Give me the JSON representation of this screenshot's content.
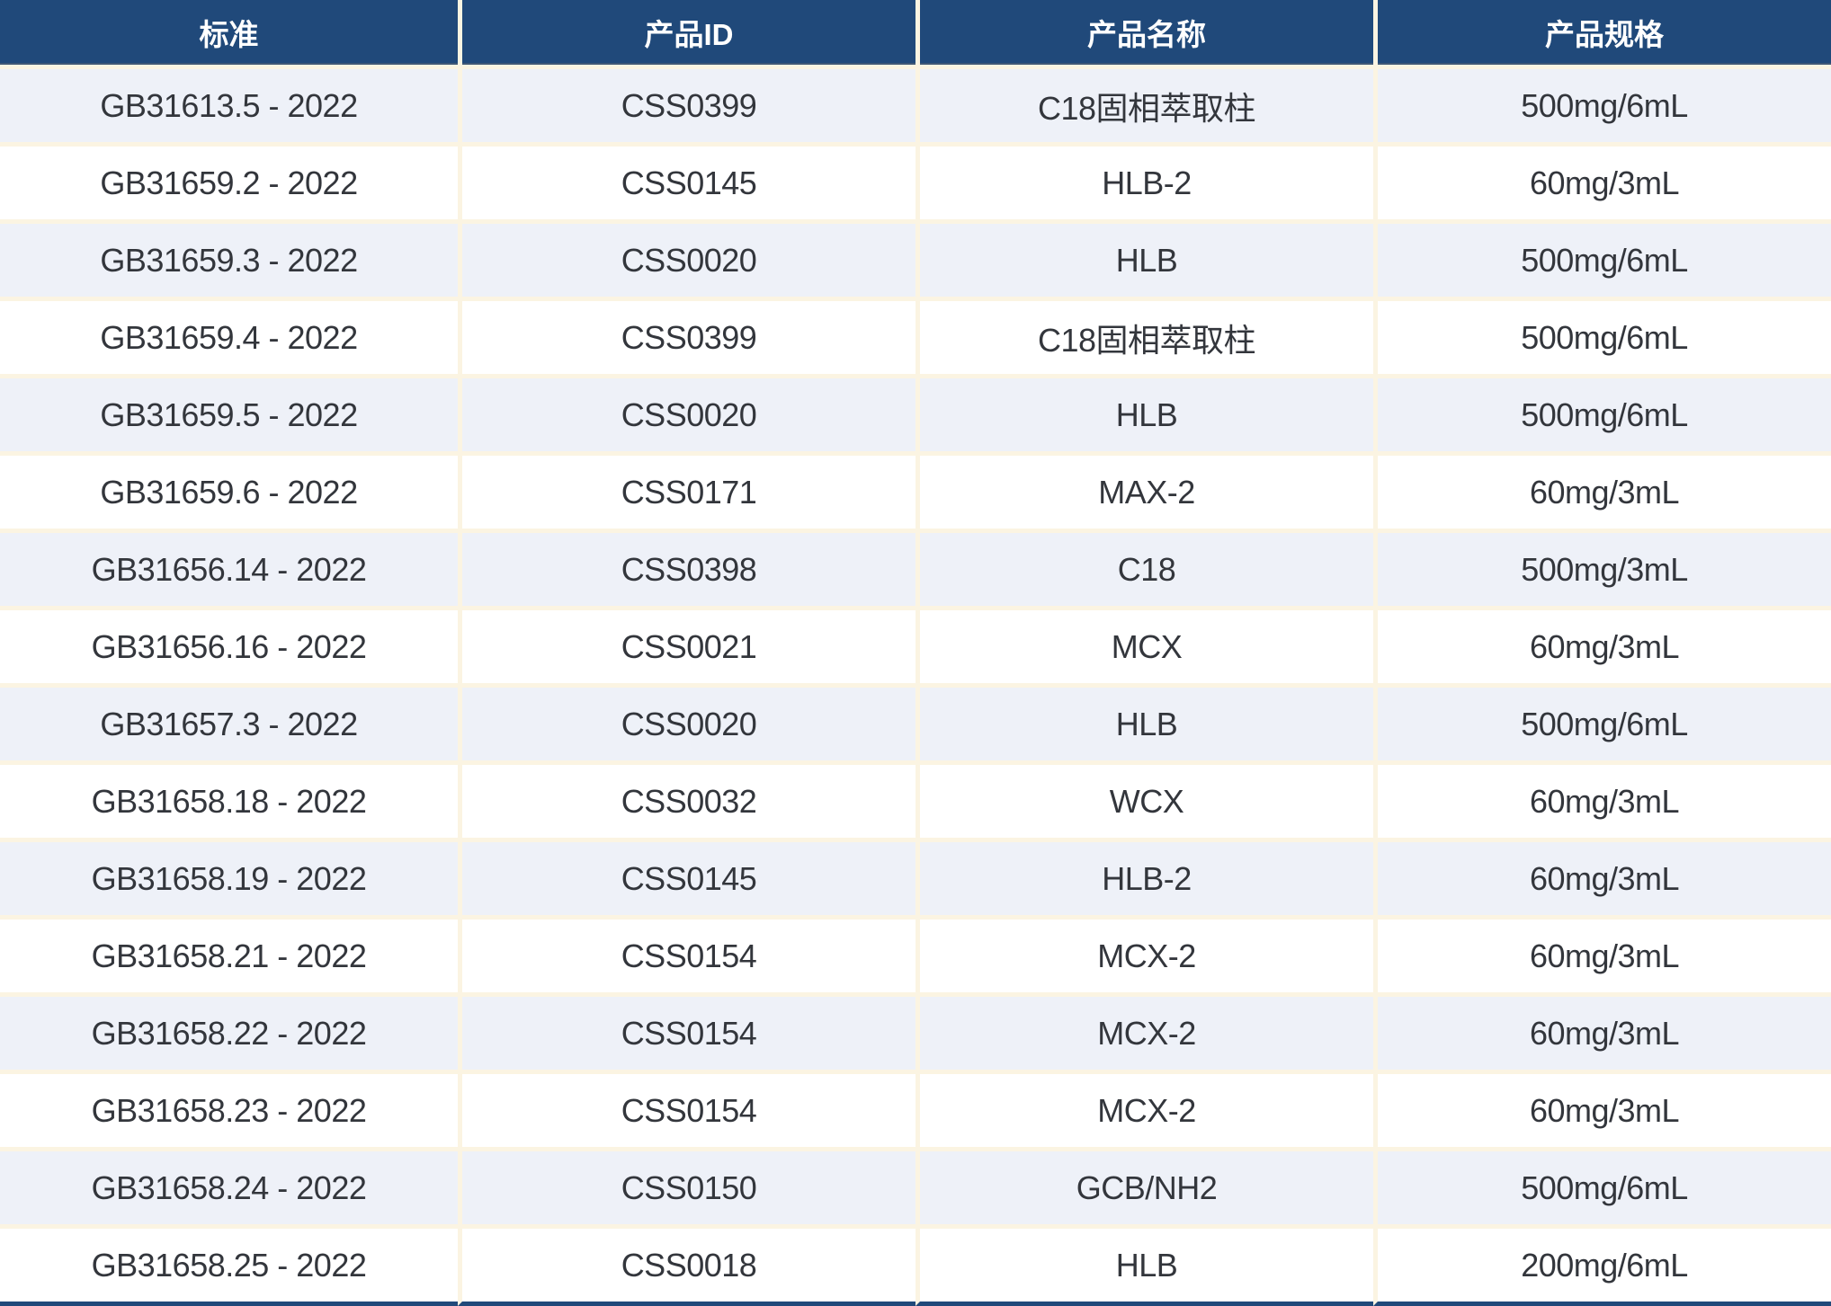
{
  "table": {
    "columns": [
      "标准",
      "产品ID",
      "产品名称",
      "产品规格"
    ],
    "rows": [
      {
        "standard": "GB31613.5 - 2022",
        "product_id": "CSS0399",
        "product_name": "C18固相萃取柱",
        "product_spec": "500mg/6mL"
      },
      {
        "standard": "GB31659.2 - 2022",
        "product_id": "CSS0145",
        "product_name": "HLB-2",
        "product_spec": "60mg/3mL"
      },
      {
        "standard": "GB31659.3 - 2022",
        "product_id": "CSS0020",
        "product_name": "HLB",
        "product_spec": "500mg/6mL"
      },
      {
        "standard": "GB31659.4 - 2022",
        "product_id": "CSS0399",
        "product_name": "C18固相萃取柱",
        "product_spec": "500mg/6mL"
      },
      {
        "standard": "GB31659.5 - 2022",
        "product_id": "CSS0020",
        "product_name": "HLB",
        "product_spec": "500mg/6mL"
      },
      {
        "standard": "GB31659.6 - 2022",
        "product_id": "CSS0171",
        "product_name": "MAX-2",
        "product_spec": "60mg/3mL"
      },
      {
        "standard": "GB31656.14 - 2022",
        "product_id": "CSS0398",
        "product_name": "C18",
        "product_spec": "500mg/3mL"
      },
      {
        "standard": "GB31656.16 - 2022",
        "product_id": "CSS0021",
        "product_name": "MCX",
        "product_spec": "60mg/3mL"
      },
      {
        "standard": "GB31657.3 - 2022",
        "product_id": "CSS0020",
        "product_name": "HLB",
        "product_spec": "500mg/6mL"
      },
      {
        "standard": "GB31658.18 - 2022",
        "product_id": "CSS0032",
        "product_name": "WCX",
        "product_spec": "60mg/3mL"
      },
      {
        "standard": "GB31658.19 - 2022",
        "product_id": "CSS0145",
        "product_name": "HLB-2",
        "product_spec": "60mg/3mL"
      },
      {
        "standard": "GB31658.21 - 2022",
        "product_id": "CSS0154",
        "product_name": "MCX-2",
        "product_spec": "60mg/3mL"
      },
      {
        "standard": "GB31658.22 - 2022",
        "product_id": "CSS0154",
        "product_name": "MCX-2",
        "product_spec": "60mg/3mL"
      },
      {
        "standard": "GB31658.23 - 2022",
        "product_id": "CSS0154",
        "product_name": "MCX-2",
        "product_spec": "60mg/3mL"
      },
      {
        "standard": "GB31658.24 - 2022",
        "product_id": "CSS0150",
        "product_name": "GCB/NH2",
        "product_spec": "500mg/6mL"
      },
      {
        "standard": "GB31658.25 - 2022",
        "product_id": "CSS0018",
        "product_name": "HLB",
        "product_spec": "200mg/6mL"
      }
    ]
  },
  "colors": {
    "header_bg": "#20497A",
    "header_text": "#FFFFFF",
    "row_bg": "#FFFFFF",
    "row_alt_bg": "#EEF1F8",
    "grid_line": "#FBF4E2",
    "body_text": "#33363C",
    "bottom_border": "#20497A"
  },
  "chart_data": {
    "type": "table",
    "columns": [
      "标准",
      "产品ID",
      "产品名称",
      "产品规格"
    ],
    "rows": [
      [
        "GB31613.5 - 2022",
        "CSS0399",
        "C18固相萃取柱",
        "500mg/6mL"
      ],
      [
        "GB31659.2 - 2022",
        "CSS0145",
        "HLB-2",
        "60mg/3mL"
      ],
      [
        "GB31659.3 - 2022",
        "CSS0020",
        "HLB",
        "500mg/6mL"
      ],
      [
        "GB31659.4 - 2022",
        "CSS0399",
        "C18固相萃取柱",
        "500mg/6mL"
      ],
      [
        "GB31659.5 - 2022",
        "CSS0020",
        "HLB",
        "500mg/6mL"
      ],
      [
        "GB31659.6 - 2022",
        "CSS0171",
        "MAX-2",
        "60mg/3mL"
      ],
      [
        "GB31656.14 - 2022",
        "CSS0398",
        "C18",
        "500mg/3mL"
      ],
      [
        "GB31656.16 - 2022",
        "CSS0021",
        "MCX",
        "60mg/3mL"
      ],
      [
        "GB31657.3 - 2022",
        "CSS0020",
        "HLB",
        "500mg/6mL"
      ],
      [
        "GB31658.18 - 2022",
        "CSS0032",
        "WCX",
        "60mg/3mL"
      ],
      [
        "GB31658.19 - 2022",
        "CSS0145",
        "HLB-2",
        "60mg/3mL"
      ],
      [
        "GB31658.21 - 2022",
        "CSS0154",
        "MCX-2",
        "60mg/3mL"
      ],
      [
        "GB31658.22 - 2022",
        "CSS0154",
        "MCX-2",
        "60mg/3mL"
      ],
      [
        "GB31658.23 - 2022",
        "CSS0154",
        "MCX-2",
        "60mg/3mL"
      ],
      [
        "GB31658.24 - 2022",
        "CSS0150",
        "GCB/NH2",
        "500mg/6mL"
      ],
      [
        "GB31658.25 - 2022",
        "CSS0018",
        "HLB",
        "200mg/6mL"
      ]
    ],
    "layout_hints": {
      "header_position": "top",
      "zebra_striping": true,
      "column_alignment": "center"
    }
  }
}
